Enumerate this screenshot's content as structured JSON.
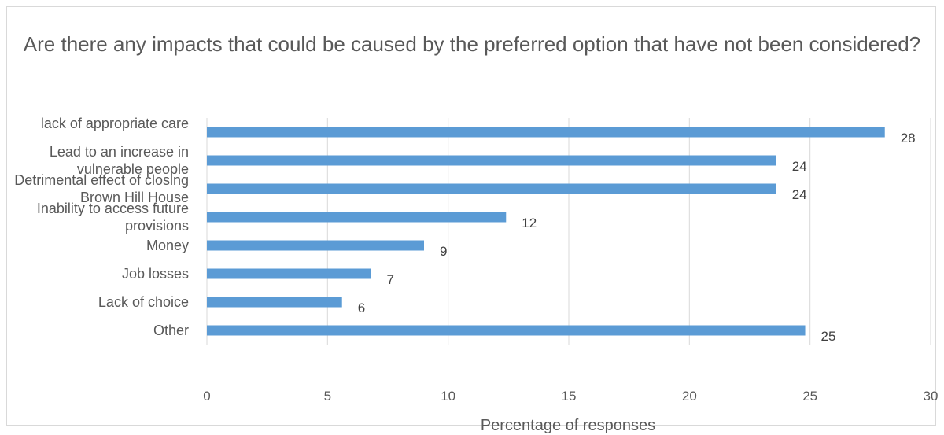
{
  "chart_data": {
    "type": "bar",
    "orientation": "horizontal",
    "title": "Are there any impacts that could be caused by the preferred option that have not been considered?",
    "categories": [
      "lack of appropriate care",
      "Lead to an increase in vulnerable people",
      "Detrimental effect of closing Brown Hill House",
      "Inability to access future provisions",
      "Money",
      "Job losses",
      "Lack of choice",
      "Other"
    ],
    "values": [
      28,
      24,
      24,
      12,
      9,
      7,
      6,
      25
    ],
    "plotted_values": [
      28.1,
      23.6,
      23.6,
      12.4,
      9.0,
      6.8,
      5.6,
      24.8
    ],
    "xlabel": "Percentage of responses",
    "ylabel": "",
    "xlim": [
      0,
      30
    ],
    "xticks": [
      "0",
      "5",
      "10",
      "15",
      "20",
      "25",
      "30"
    ],
    "grid": "vertical",
    "legend": "none",
    "bar_color": "#5b9bd5"
  }
}
